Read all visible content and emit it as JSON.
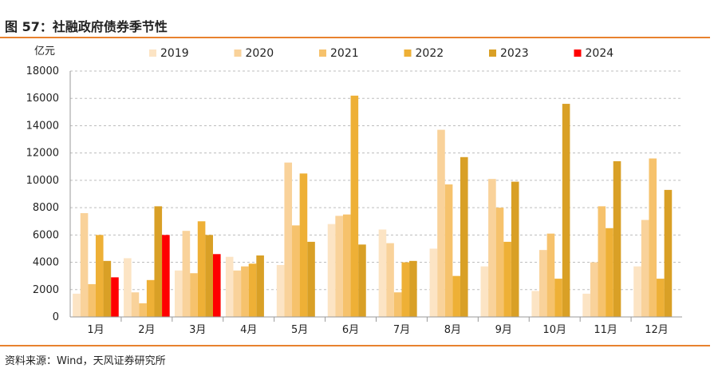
{
  "header": {
    "title": "图 57：社融政府债券季节性"
  },
  "footer": {
    "source": "资料来源：Wind，天风证券研究所"
  },
  "chart_data": {
    "type": "bar",
    "title": "",
    "unit_label": "亿元",
    "xlabel": "",
    "ylabel": "",
    "ylim": [
      0,
      18000
    ],
    "yticks": [
      0,
      2000,
      4000,
      6000,
      8000,
      10000,
      12000,
      14000,
      16000,
      18000
    ],
    "grid": true,
    "legend_position": "top",
    "categories": [
      "1月",
      "2月",
      "3月",
      "4月",
      "5月",
      "6月",
      "7月",
      "8月",
      "9月",
      "10月",
      "11月",
      "12月"
    ],
    "series": [
      {
        "name": "2019",
        "color": "#fce4c4",
        "values": [
          1700,
          4300,
          3400,
          4400,
          3800,
          6800,
          6400,
          5000,
          3700,
          1900,
          1700,
          3700
        ]
      },
      {
        "name": "2020",
        "color": "#f9d29a",
        "values": [
          7600,
          1800,
          6300,
          3400,
          11300,
          7400,
          5400,
          13700,
          10100,
          4900,
          4000,
          7100
        ]
      },
      {
        "name": "2021",
        "color": "#f6c26c",
        "values": [
          2400,
          1000,
          3200,
          3700,
          6700,
          7500,
          1800,
          9700,
          8000,
          6100,
          8100,
          11600
        ]
      },
      {
        "name": "2022",
        "color": "#eeb036",
        "values": [
          6000,
          2700,
          7000,
          3900,
          10500,
          16200,
          4000,
          3000,
          5500,
          2800,
          6500,
          2800
        ]
      },
      {
        "name": "2023",
        "color": "#d9a026",
        "values": [
          4100,
          8100,
          6000,
          4500,
          5500,
          5300,
          4100,
          11700,
          9900,
          15600,
          11400,
          9300
        ]
      },
      {
        "name": "2024",
        "color": "#ff0000",
        "values": [
          2900,
          6000,
          4600,
          null,
          null,
          null,
          null,
          null,
          null,
          null,
          null,
          null
        ]
      }
    ]
  }
}
